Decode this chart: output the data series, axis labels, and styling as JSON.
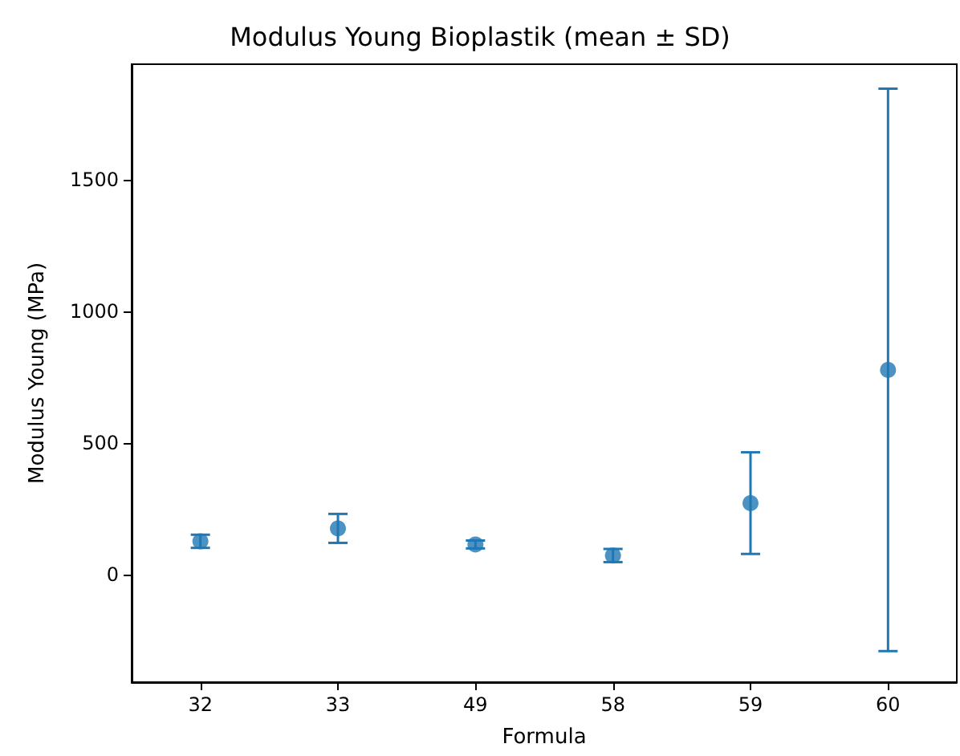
{
  "chart_data": {
    "type": "scatter",
    "title": "Modulus Young Bioplastik (mean ± SD)",
    "xlabel": "Formula",
    "ylabel": "Modulus Young (MPa)",
    "categories": [
      "32",
      "33",
      "49",
      "58",
      "59",
      "60"
    ],
    "values": [
      126,
      175,
      114,
      72,
      271,
      777
    ],
    "errors": [
      25,
      55,
      15,
      25,
      193,
      1068
    ],
    "color": "#1f77b4",
    "ylim": [
      -409,
      1938
    ],
    "yticks": [
      0,
      500,
      1000,
      1500
    ],
    "marker": "circle",
    "grid": false
  }
}
